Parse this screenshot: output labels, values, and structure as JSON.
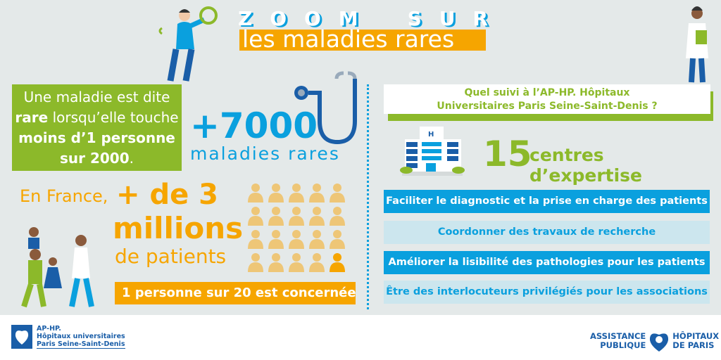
{
  "header": {
    "zoom_letters": [
      "Z",
      "O",
      "O",
      "M",
      "",
      "S",
      "U",
      "R"
    ],
    "title": "les maladies rares"
  },
  "definition": {
    "part1": "Une maladie est dite ",
    "rare": "rare",
    "part2": " lorsqu’elle touche ",
    "moins": "moins d’1 personne sur 2000",
    "end": "."
  },
  "stats": {
    "count": "+7000",
    "count_label": "maladies rares",
    "en_france": "En France,",
    "plus_de": "+ de 3",
    "millions": "millions",
    "de_patients": "de patients",
    "ratio": "1  personne sur 20 est concernée",
    "people_total": 20,
    "people_highlighted": 1
  },
  "right": {
    "question": "Quel suivi à l’AP-HP. Hôpitaux Universitaires Paris Seine-Saint-Denis ?",
    "centres_count": "15",
    "centres_label": "centres d’expertise",
    "missions": [
      "Faciliter le diagnostic et la prise en charge des patients",
      "Coordonner des travaux de recherche",
      "Améliorer la lisibilité des pathologies pour les patients",
      "Être des interlocuteurs privilégiés pour les associations"
    ]
  },
  "footer": {
    "logo_left": [
      "AP-HP.",
      "Hôpitaux universitaires",
      "Paris Seine-Saint-Denis"
    ],
    "logo_right": [
      "ASSISTANCE",
      "PUBLIQUE",
      "HÔPITAUX",
      "DE PARIS"
    ]
  },
  "colors": {
    "green": "#8cb92a",
    "orange": "#f6a500",
    "blue": "#0aa0de",
    "light_blue": "#cce6ee",
    "navy": "#1a5ea8",
    "person_light": "#eec677",
    "background": "#e4e9e9"
  }
}
